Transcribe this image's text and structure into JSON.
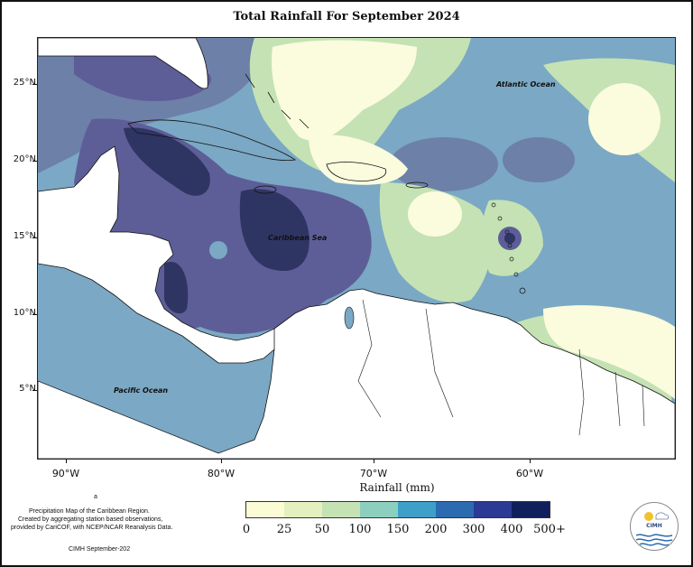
{
  "title": "Total Rainfall For September 2024",
  "map": {
    "latitude_ticks": [
      "25°N",
      "20°N",
      "15°N",
      "10°N",
      "5°N"
    ],
    "longitude_ticks": [
      "90°W",
      "80°W",
      "70°W",
      "60°W"
    ],
    "labels": {
      "atlantic": "Atlantic Ocean",
      "caribbean": "Caribbean Sea",
      "pacific": "Pacific Ocean"
    }
  },
  "legend": {
    "title": "Rainfall (mm)",
    "breaks": [
      "0",
      "25",
      "50",
      "100",
      "150",
      "200",
      "300",
      "400",
      "500+"
    ],
    "colors": [
      "#fbfbd6",
      "#e4f0be",
      "#c4e2b4",
      "#8dcfbe",
      "#3ea0c8",
      "#2c6bb0",
      "#2c3a96",
      "#10205c"
    ]
  },
  "notes": {
    "line1": "Precipitation Map of the Caribbean Region.",
    "line2": "Created by aggregating station based observations,",
    "line3": "provided by CariCOF, with NCEP/NCAR Reanalysis Data.",
    "credit": "CIMH September-202",
    "stray_mark": "a"
  },
  "logo": {
    "text": "CIMH"
  },
  "palette": {
    "very_dry": "#fbfbdd",
    "dry": "#dcebc6",
    "medium": "#a7cbc8",
    "blue": "#7ba8c4",
    "slate": "#6d80a8",
    "purple": "#5d5e97",
    "dark": "#2f3563",
    "land": "#ffffff"
  }
}
